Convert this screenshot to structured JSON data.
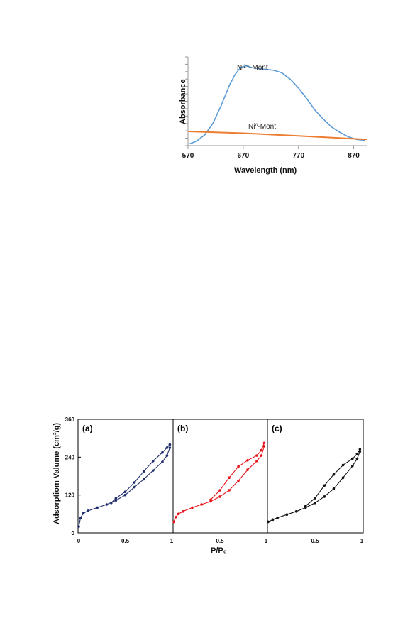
{
  "chart_data": [
    {
      "type": "line",
      "xlabel": "Wavelength (nm)",
      "ylabel": "Absorbance",
      "xlim": [
        570,
        895
      ],
      "ylim": [
        0,
        1
      ],
      "x_ticks": [
        "570",
        "670",
        "770",
        "870"
      ],
      "series": [
        {
          "name": "Ni²⁺-Mont",
          "color": "#5b9bd5",
          "x": [
            573,
            585,
            600,
            615,
            630,
            645,
            655,
            665,
            675,
            685,
            695,
            710,
            725,
            740,
            755,
            770,
            785,
            800,
            815,
            830,
            845,
            860,
            875,
            890
          ],
          "y": [
            0.02,
            0.05,
            0.12,
            0.25,
            0.45,
            0.68,
            0.8,
            0.88,
            0.9,
            0.88,
            0.87,
            0.86,
            0.85,
            0.82,
            0.75,
            0.65,
            0.53,
            0.4,
            0.3,
            0.21,
            0.15,
            0.1,
            0.07,
            0.06
          ]
        },
        {
          "name": "Ni⁰-Mont",
          "color": "#ed7d31",
          "x": [
            570,
            670,
            770,
            895
          ],
          "y": [
            0.16,
            0.14,
            0.11,
            0.07
          ]
        }
      ]
    },
    {
      "type": "line",
      "xlabel": "P/P₀",
      "ylabel": "Adsorptiom Valume (cm³/g)",
      "ylim": [
        0,
        360
      ],
      "y_ticks": [
        "0",
        "120",
        "240",
        "360"
      ],
      "panels": [
        {
          "label": "(a)",
          "color": "#1f2d6b",
          "x_ticks": [
            "0",
            "0.5",
            "1"
          ],
          "adsorption": {
            "x": [
              0.0,
              0.02,
              0.05,
              0.1,
              0.2,
              0.3,
              0.4,
              0.5,
              0.6,
              0.7,
              0.8,
              0.9,
              0.95,
              0.98
            ],
            "y": [
              20,
              48,
              62,
              70,
              80,
              90,
              103,
              120,
              145,
              170,
              198,
              225,
              245,
              270
            ]
          },
          "desorption": {
            "x": [
              0.98,
              0.95,
              0.9,
              0.8,
              0.7,
              0.6,
              0.5,
              0.4,
              0.35
            ],
            "y": [
              280,
              270,
              255,
              228,
              195,
              160,
              130,
              110,
              95
            ]
          }
        },
        {
          "label": "(b)",
          "color": "#e8141c",
          "x_ticks": [
            "0.5",
            "1"
          ],
          "adsorption": {
            "x": [
              0.0,
              0.02,
              0.05,
              0.1,
              0.2,
              0.3,
              0.4,
              0.5,
              0.6,
              0.7,
              0.8,
              0.9,
              0.95,
              0.98
            ],
            "y": [
              35,
              50,
              60,
              68,
              80,
              90,
              100,
              115,
              135,
              165,
              200,
              228,
              245,
              275
            ]
          },
          "desorption": {
            "x": [
              0.98,
              0.95,
              0.9,
              0.8,
              0.7,
              0.6,
              0.5,
              0.4
            ],
            "y": [
              285,
              262,
              245,
              230,
              210,
              175,
              135,
              105
            ]
          }
        },
        {
          "label": "(c)",
          "color": "#111111",
          "x_ticks": [
            "0.5",
            "1"
          ],
          "adsorption": {
            "x": [
              0.0,
              0.05,
              0.1,
              0.2,
              0.3,
              0.4,
              0.5,
              0.6,
              0.7,
              0.8,
              0.9,
              0.95,
              0.98
            ],
            "y": [
              35,
              42,
              48,
              58,
              68,
              80,
              95,
              115,
              140,
              175,
              212,
              235,
              258
            ]
          },
          "desorption": {
            "x": [
              0.98,
              0.95,
              0.9,
              0.8,
              0.7,
              0.6,
              0.5,
              0.4
            ],
            "y": [
              265,
              250,
              235,
              215,
              185,
              150,
              110,
              85
            ]
          }
        }
      ]
    }
  ]
}
